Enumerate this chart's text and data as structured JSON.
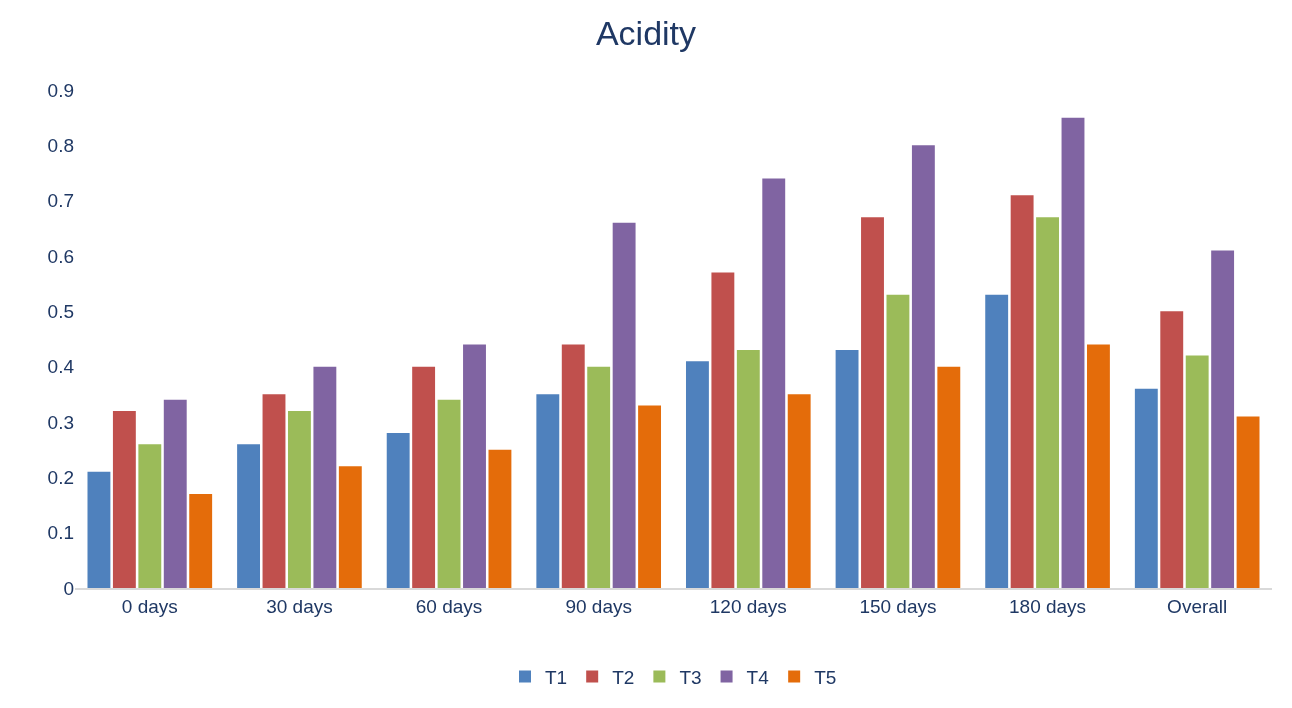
{
  "chart_data": {
    "type": "bar",
    "title": "Acidity",
    "categories": [
      "0 days",
      "30 days",
      "60 days",
      "90 days",
      "120 days",
      "150 days",
      "180 days",
      "Overall"
    ],
    "series": [
      {
        "name": "T1",
        "color": "#4f81bd",
        "values": [
          0.21,
          0.26,
          0.28,
          0.35,
          0.41,
          0.43,
          0.53,
          0.36
        ]
      },
      {
        "name": "T2",
        "color": "#c0504d",
        "values": [
          0.32,
          0.35,
          0.4,
          0.44,
          0.57,
          0.67,
          0.71,
          0.5
        ]
      },
      {
        "name": "T3",
        "color": "#9bbb59",
        "values": [
          0.26,
          0.32,
          0.34,
          0.4,
          0.43,
          0.53,
          0.67,
          0.42
        ]
      },
      {
        "name": "T4",
        "color": "#8064a2",
        "values": [
          0.34,
          0.4,
          0.44,
          0.66,
          0.74,
          0.8,
          0.85,
          0.61
        ]
      },
      {
        "name": "T5",
        "color": "#e46c0a",
        "values": [
          0.17,
          0.22,
          0.25,
          0.33,
          0.35,
          0.4,
          0.44,
          0.31
        ]
      }
    ],
    "ylim": [
      0,
      0.9
    ],
    "yticks": [
      0,
      0.1,
      0.2,
      0.3,
      0.4,
      0.5,
      0.6,
      0.7,
      0.8,
      0.9
    ],
    "grid": false,
    "legend": "bottom"
  }
}
